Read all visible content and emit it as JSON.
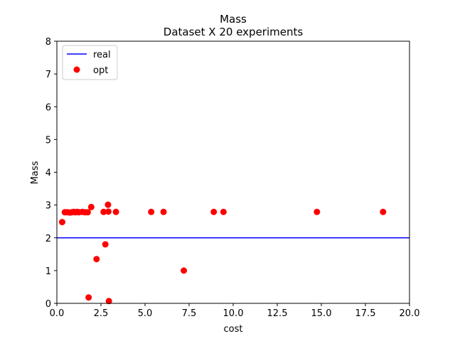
{
  "chart_data": {
    "type": "scatter",
    "title": "Mass",
    "subtitle": "Dataset X 20 experiments",
    "xlabel": "cost",
    "ylabel": "Mass",
    "xlim": [
      0,
      20
    ],
    "ylim": [
      0,
      8
    ],
    "x_ticks": [
      0,
      2.5,
      5,
      7.5,
      10,
      12.5,
      15,
      17.5,
      20
    ],
    "x_tick_labels": [
      "0.0",
      "2.5",
      "5.0",
      "7.5",
      "10.0",
      "12.5",
      "15.0",
      "17.5",
      "20.0"
    ],
    "y_ticks": [
      0,
      1,
      2,
      3,
      4,
      5,
      6,
      7,
      8
    ],
    "y_tick_labels": [
      "0",
      "1",
      "2",
      "3",
      "4",
      "5",
      "6",
      "7",
      "8"
    ],
    "grid": false,
    "legend_position": "top-left",
    "series": [
      {
        "name": "real",
        "kind": "hline",
        "y": 2.0,
        "color": "#0000ff"
      },
      {
        "name": "opt",
        "kind": "points",
        "color": "#ff0000",
        "points": [
          [
            0.3,
            2.48
          ],
          [
            0.45,
            2.78
          ],
          [
            0.6,
            2.78
          ],
          [
            0.75,
            2.77
          ],
          [
            0.85,
            2.78
          ],
          [
            0.95,
            2.79
          ],
          [
            1.05,
            2.78
          ],
          [
            1.15,
            2.79
          ],
          [
            1.25,
            2.78
          ],
          [
            1.45,
            2.79
          ],
          [
            1.6,
            2.78
          ],
          [
            1.75,
            2.78
          ],
          [
            1.8,
            0.18
          ],
          [
            1.95,
            2.94
          ],
          [
            2.25,
            1.35
          ],
          [
            2.65,
            2.79
          ],
          [
            2.75,
            1.8
          ],
          [
            2.9,
            3.01
          ],
          [
            2.92,
            2.8
          ],
          [
            2.95,
            0.07
          ],
          [
            3.35,
            2.79
          ],
          [
            5.35,
            2.79
          ],
          [
            6.05,
            2.79
          ],
          [
            7.2,
            1.0
          ],
          [
            8.9,
            2.79
          ],
          [
            9.45,
            2.79
          ],
          [
            14.75,
            2.79
          ],
          [
            18.5,
            2.79
          ]
        ]
      }
    ]
  }
}
